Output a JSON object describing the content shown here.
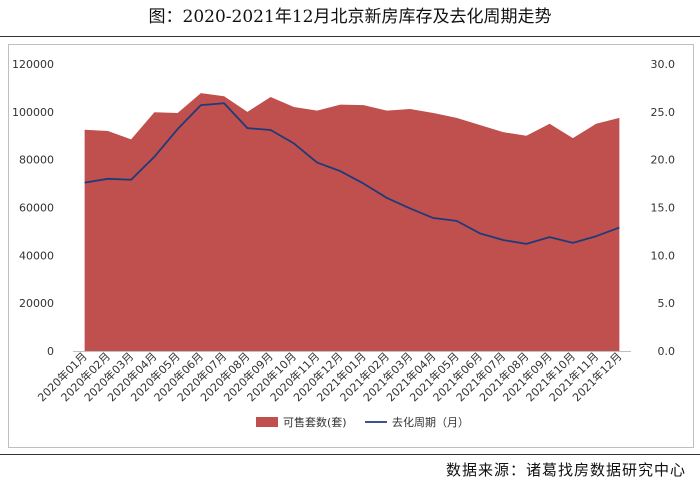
{
  "figure_title": "图：2020-2021年12月北京新房库存及去化周期走势",
  "source": "数据来源：诸葛找房数据研究中心",
  "chart_data": {
    "type": "area",
    "categories": [
      "2020年01月",
      "2020年02月",
      "2020年03月",
      "2020年04月",
      "2020年05月",
      "2020年06月",
      "2020年07月",
      "2020年08月",
      "2020年09月",
      "2020年10月",
      "2020年11月",
      "2020年12月",
      "2021年01月",
      "2021年02月",
      "2021年03月",
      "2021年04月",
      "2021年05月",
      "2021年06月",
      "2021年07月",
      "2021年08月",
      "2021年09月",
      "2021年10月",
      "2021年11月",
      "2021年12月"
    ],
    "left_axis": {
      "min": 0,
      "max": 120000,
      "ticks": [
        "0",
        "20000",
        "40000",
        "60000",
        "80000",
        "100000",
        "120000"
      ]
    },
    "right_axis": {
      "min": 0,
      "max": 30,
      "ticks": [
        "0.0",
        "5.0",
        "10.0",
        "15.0",
        "20.0",
        "25.0",
        "30.0"
      ]
    },
    "series": [
      {
        "name": "可售套数(套)",
        "type": "area",
        "axis": "left",
        "color": "#c0504d",
        "values": [
          92500,
          92000,
          88500,
          99800,
          99500,
          107800,
          106500,
          100000,
          106200,
          102000,
          100500,
          103000,
          102800,
          100500,
          101200,
          99500,
          97500,
          94500,
          91500,
          90000,
          95000,
          89000,
          95000,
          97500
        ]
      },
      {
        "name": "去化周期（月）",
        "type": "line",
        "axis": "right",
        "color": "#1f3a7a",
        "values": [
          17.6,
          18.0,
          17.9,
          20.3,
          23.2,
          25.7,
          25.9,
          23.3,
          23.1,
          21.7,
          19.7,
          18.8,
          17.5,
          16.0,
          14.9,
          13.9,
          13.6,
          12.3,
          11.6,
          11.2,
          11.9,
          11.3,
          12.0,
          12.9
        ]
      }
    ],
    "legend_position": "bottom"
  }
}
